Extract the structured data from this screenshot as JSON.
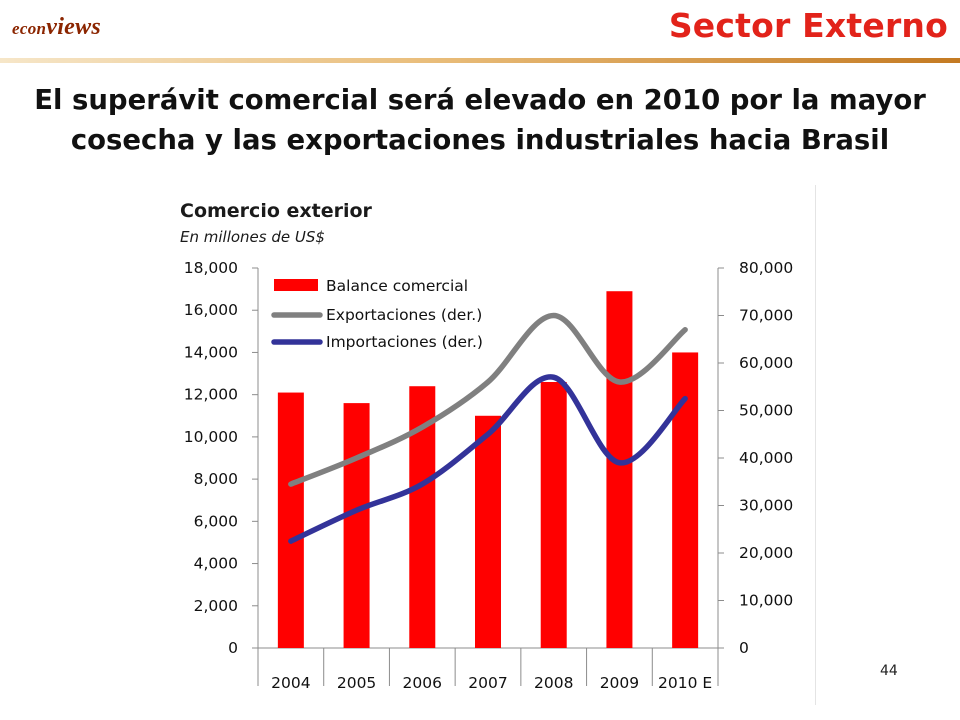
{
  "header": {
    "logo": {
      "part1": "econ",
      "part2": "views"
    },
    "section_title": "Sector Externo"
  },
  "headline": {
    "line1": "El superávit comercial será elevado en 2010 por la mayor",
    "line2": "cosecha y las exportaciones industriales hacia Brasil"
  },
  "page_number": "44",
  "colors": {
    "accent": "#e2231a",
    "bar": "#ff0000",
    "exports_line": "#808080",
    "imports_line": "#333399"
  },
  "chart_data": {
    "type": "bar",
    "title": "Comercio exterior",
    "subtitle": "En millones de US$",
    "categories": [
      "2004",
      "2005",
      "2006",
      "2007",
      "2008",
      "2009",
      "2010 E"
    ],
    "y_left": {
      "range": [
        0,
        18000
      ],
      "ticks": [
        "0",
        "2,000",
        "4,000",
        "6,000",
        "8,000",
        "10,000",
        "12,000",
        "14,000",
        "16,000",
        "18,000"
      ]
    },
    "y_right": {
      "range": [
        0,
        80000
      ],
      "ticks": [
        "0",
        "10,000",
        "20,000",
        "30,000",
        "40,000",
        "50,000",
        "60,000",
        "70,000",
        "80,000"
      ]
    },
    "series": [
      {
        "name": "Balance comercial",
        "type": "bar",
        "axis": "left",
        "values": [
          12100,
          11600,
          12400,
          11000,
          12600,
          16900,
          14000
        ]
      },
      {
        "name": "Exportaciones (der.)",
        "type": "line",
        "axis": "right",
        "values": [
          34500,
          40000,
          46500,
          56000,
          70000,
          56000,
          67000
        ]
      },
      {
        "name": "Importaciones (der.)",
        "type": "line",
        "axis": "right",
        "values": [
          22500,
          29000,
          34500,
          45000,
          57000,
          39000,
          52500
        ]
      }
    ],
    "legend_position": "top-left",
    "grid": false
  }
}
